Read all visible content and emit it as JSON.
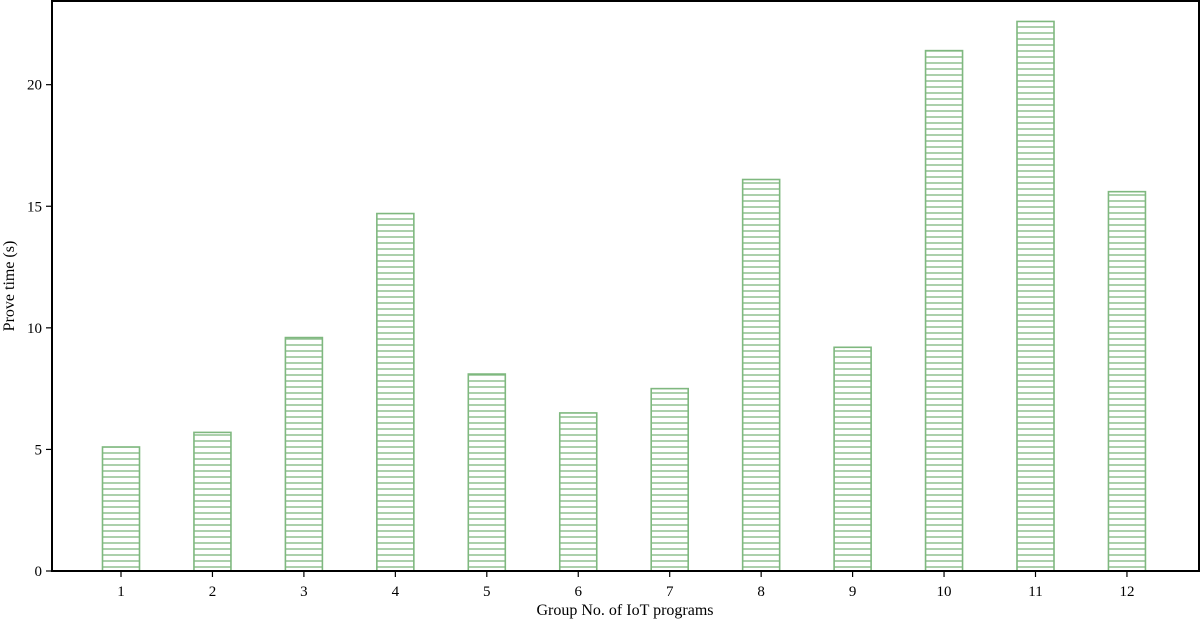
{
  "chart_data": {
    "type": "bar",
    "title": "",
    "xlabel": "Group No. of IoT programs",
    "ylabel": "Prove time (s)",
    "categories": [
      "1",
      "2",
      "3",
      "4",
      "5",
      "6",
      "7",
      "8",
      "9",
      "10",
      "11",
      "12"
    ],
    "values": [
      5.1,
      5.7,
      9.6,
      14.7,
      8.1,
      6.5,
      7.5,
      16.1,
      9.2,
      21.4,
      22.6,
      15.6
    ],
    "ylim": [
      0,
      23.4
    ],
    "yticks": [
      0,
      5,
      10,
      15,
      20
    ],
    "grid": false,
    "legend": "none",
    "bar_color": "#7fb87f",
    "bar_pattern": "horizontal-hatch"
  }
}
